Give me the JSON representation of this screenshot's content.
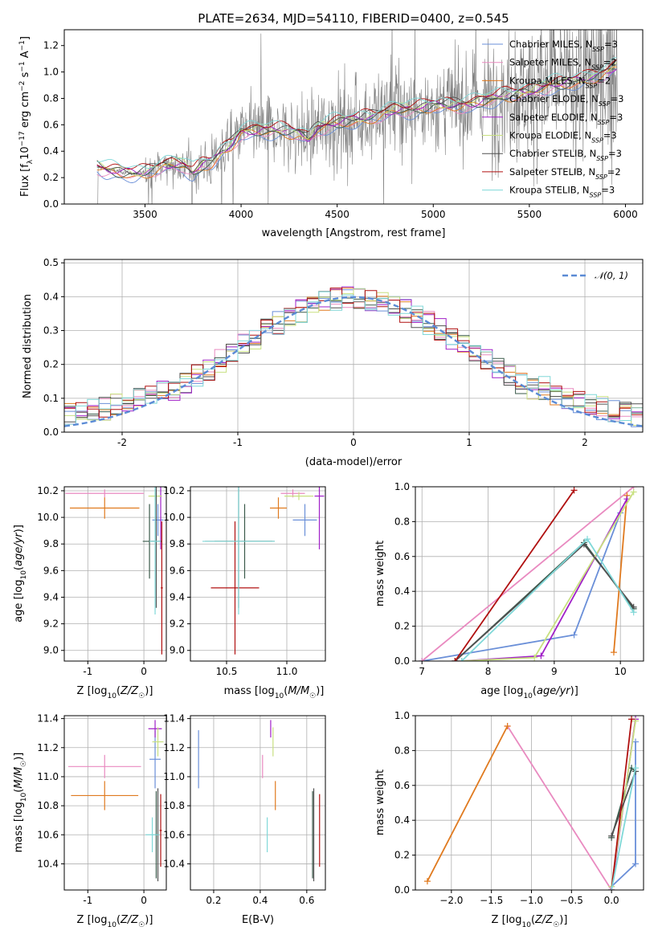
{
  "chart_data": [
    {
      "id": "spectrum",
      "type": "line",
      "title": "PLATE=2634, MJD=54110, FIBERID=0400, z=0.545",
      "xlabel": "wavelength [Angstrom, rest frame]",
      "ylabel": "Flux [f_λ 10^-17 erg cm^-2 s^-1 A^-1]",
      "xlim": [
        3080,
        6090
      ],
      "ylim": [
        0,
        1.32
      ],
      "xticks": [
        3500,
        4000,
        4500,
        5000,
        5500,
        6000
      ],
      "yticks": [
        0.0,
        0.2,
        0.4,
        0.6,
        0.8,
        1.0,
        1.2
      ],
      "legend_position": "top-right",
      "legend": [
        {
          "name": "Chabrier MILES",
          "nssp": 3,
          "color": "#6a8fd8"
        },
        {
          "name": "Salpeter MILES",
          "nssp": 2,
          "color": "#e98ac0"
        },
        {
          "name": "Kroupa MILES",
          "nssp": 2,
          "color": "#e07a1f"
        },
        {
          "name": "Chabrier ELODIE",
          "nssp": 3,
          "color": "#3a5a4a"
        },
        {
          "name": "Salpeter ELODIE",
          "nssp": 3,
          "color": "#a020c8"
        },
        {
          "name": "Kroupa ELODIE",
          "nssp": 3,
          "color": "#c8e080"
        },
        {
          "name": "Chabrier STELIB",
          "nssp": 3,
          "color": "#505050"
        },
        {
          "name": "Salpeter STELIB",
          "nssp": 2,
          "color": "#b01010"
        },
        {
          "name": "Kroupa STELIB",
          "nssp": 3,
          "color": "#80d8d8"
        }
      ],
      "model_continuum": [
        [
          3250,
          0.29
        ],
        [
          3300,
          0.26
        ],
        [
          3350,
          0.25
        ],
        [
          3400,
          0.24
        ],
        [
          3450,
          0.23
        ],
        [
          3500,
          0.24
        ],
        [
          3550,
          0.27
        ],
        [
          3600,
          0.3
        ],
        [
          3650,
          0.31
        ],
        [
          3700,
          0.3
        ],
        [
          3750,
          0.24
        ],
        [
          3800,
          0.3
        ],
        [
          3850,
          0.32
        ],
        [
          3900,
          0.4
        ],
        [
          3950,
          0.45
        ],
        [
          4000,
          0.55
        ],
        [
          4100,
          0.56
        ],
        [
          4200,
          0.56
        ],
        [
          4300,
          0.54
        ],
        [
          4350,
          0.5
        ],
        [
          4400,
          0.58
        ],
        [
          4500,
          0.62
        ],
        [
          4600,
          0.64
        ],
        [
          4700,
          0.67
        ],
        [
          4800,
          0.72
        ],
        [
          4900,
          0.72
        ],
        [
          5000,
          0.75
        ],
        [
          5100,
          0.75
        ],
        [
          5200,
          0.76
        ],
        [
          5300,
          0.8
        ],
        [
          5400,
          0.83
        ],
        [
          5500,
          0.86
        ],
        [
          5600,
          0.9
        ],
        [
          5700,
          0.92
        ],
        [
          5800,
          0.95
        ],
        [
          5900,
          1.0
        ],
        [
          5950,
          1.05
        ]
      ]
    },
    {
      "id": "residuals",
      "type": "line",
      "xlabel": "(data-model)/error",
      "ylabel": "Normed distribution",
      "xlim": [
        -2.5,
        2.5
      ],
      "ylim": [
        0,
        0.51
      ],
      "xticks": [
        -2,
        -1,
        0,
        1,
        2
      ],
      "yticks": [
        0.0,
        0.1,
        0.2,
        0.3,
        0.4,
        0.5
      ],
      "legend_position": "top-right",
      "legend": [
        {
          "name": "N(0,1)",
          "color": "#5b8bd5",
          "style": "dashed"
        }
      ],
      "gaussian": {
        "mean": 0,
        "sigma": 1
      }
    },
    {
      "id": "age_vs_Z",
      "type": "scatter",
      "xlabel": "Z [log10(Z/Z☉)]",
      "ylabel": "age [log10(age/yr)]",
      "xlim": [
        -1.42,
        0.4
      ],
      "ylim": [
        8.92,
        10.23
      ],
      "xticks": [
        -1,
        0
      ],
      "yticks": [
        9.0,
        9.2,
        9.4,
        9.6,
        9.8,
        10.0,
        10.2
      ]
    },
    {
      "id": "age_vs_mass",
      "type": "scatter",
      "xlabel": "mass [log10(M/M☉)]",
      "xlim": [
        10.2,
        11.32
      ],
      "ylim": [
        8.92,
        10.23
      ],
      "xticks": [
        10.5,
        11.0
      ],
      "yticks": [
        9.0,
        9.2,
        9.4,
        9.6,
        9.8,
        10.0,
        10.2
      ]
    },
    {
      "id": "weight_vs_age",
      "type": "line",
      "xlabel": "age [log10(age/yr)]",
      "ylabel": "mass weight",
      "xlim": [
        6.9,
        10.35
      ],
      "ylim": [
        0,
        1.0
      ],
      "xticks": [
        7,
        8,
        9,
        10
      ],
      "yticks": [
        0.0,
        0.2,
        0.4,
        0.6,
        0.8,
        1.0
      ]
    },
    {
      "id": "mass_vs_Z",
      "type": "scatter",
      "xlabel": "Z [log10(Z/Z☉)]",
      "ylabel": "mass [log10(M/M☉)]",
      "xlim": [
        -1.42,
        0.4
      ],
      "ylim": [
        10.22,
        11.42
      ],
      "xticks": [
        -1,
        0
      ],
      "yticks": [
        10.4,
        10.6,
        10.8,
        11.0,
        11.2,
        11.4
      ]
    },
    {
      "id": "mass_vs_ebv",
      "type": "scatter",
      "xlabel": "E(B-V)",
      "xlim": [
        0.1,
        0.68
      ],
      "ylim": [
        10.22,
        11.42
      ],
      "xticks": [
        0.2,
        0.4,
        0.6
      ],
      "yticks": [
        10.4,
        10.6,
        10.8,
        11.0,
        11.2,
        11.4
      ]
    },
    {
      "id": "weight_vs_Z",
      "type": "line",
      "xlabel": "Z [log10(Z/Z☉)]",
      "ylabel": "mass weight",
      "xlim": [
        -2.45,
        0.4
      ],
      "ylim": [
        0,
        1.0
      ],
      "xticks": [
        -2.0,
        -1.5,
        -1.0,
        -0.5,
        0.0
      ],
      "yticks": [
        0.0,
        0.2,
        0.4,
        0.6,
        0.8,
        1.0
      ]
    }
  ]
}
